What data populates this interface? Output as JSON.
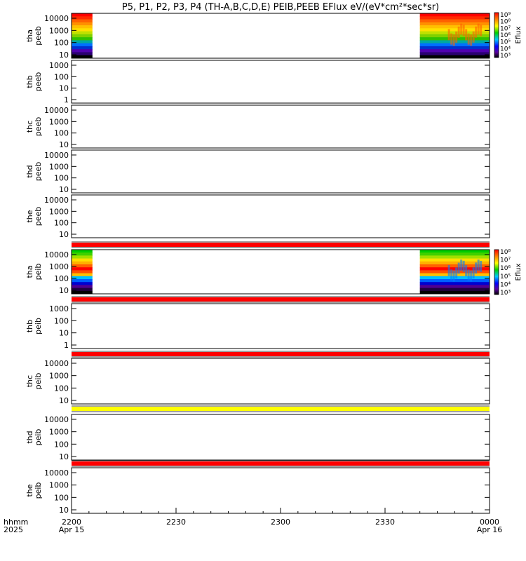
{
  "chart_data": {
    "type": "heatmap",
    "title": "P5, P1, P2, P3, P4 (TH-A,B,C,D,E) PEIB,PEEB EFlux eV/(eV*cm²*sec*sr)",
    "time_axis": {
      "row_label_1": "hhmm",
      "row_label_2": "2025",
      "ticks": [
        {
          "t": 0,
          "label": "2200",
          "date": "Apr 15"
        },
        {
          "t": 30,
          "label": "2230",
          "date": ""
        },
        {
          "t": 60,
          "label": "2300",
          "date": ""
        },
        {
          "t": 90,
          "label": "2330",
          "date": ""
        },
        {
          "t": 120,
          "label": "0000",
          "date": "Apr 16"
        }
      ],
      "range_minutes": [
        0,
        120
      ],
      "start": "2025-04-15 22:00",
      "end": "2025-04-16 00:00"
    },
    "colorbars": [
      {
        "id": "peeb",
        "label": "Eflux",
        "ticks": [
          "10⁹",
          "10⁸",
          "10⁷",
          "10⁶",
          "10⁵",
          "10⁴",
          "10³"
        ]
      },
      {
        "id": "peib",
        "label": "Eflux",
        "ticks": [
          "10⁸",
          "10⁷",
          "10⁶",
          "10⁵",
          "10⁴",
          "10³"
        ]
      }
    ],
    "panels": [
      {
        "probe": "tha",
        "product": "peeb",
        "yticks": [
          "10000",
          "1000",
          "100",
          "10"
        ],
        "data_segments": [
          [
            0,
            6
          ],
          [
            100,
            120
          ]
        ],
        "colorbar": "peeb"
      },
      {
        "probe": "thb",
        "product": "peeb",
        "yticks": [
          "1000",
          "100",
          "10",
          "1"
        ],
        "data_segments": [],
        "colorbar": null
      },
      {
        "probe": "thc",
        "product": "peeb",
        "yticks": [
          "10000",
          "1000",
          "100",
          "10"
        ],
        "data_segments": [],
        "colorbar": null
      },
      {
        "probe": "thd",
        "product": "peeb",
        "yticks": [
          "10000",
          "1000",
          "100",
          "10"
        ],
        "data_segments": [],
        "colorbar": null
      },
      {
        "probe": "the",
        "product": "peeb",
        "yticks": [
          "10000",
          "1000",
          "100",
          "10"
        ],
        "data_segments": [],
        "colorbar": null
      },
      {
        "probe": "tha",
        "product": "peib",
        "yticks": [
          "10000",
          "1000",
          "100",
          "10"
        ],
        "data_segments": [
          [
            0,
            6
          ],
          [
            100,
            120
          ]
        ],
        "colorbar": "peib"
      },
      {
        "probe": "thb",
        "product": "peib",
        "yticks": [
          "1000",
          "100",
          "10",
          "1"
        ],
        "data_segments": [],
        "colorbar": null
      },
      {
        "probe": "thc",
        "product": "peib",
        "yticks": [
          "10000",
          "1000",
          "100",
          "10"
        ],
        "data_segments": [],
        "colorbar": null
      },
      {
        "probe": "thd",
        "product": "peib",
        "yticks": [
          "10000",
          "1000",
          "100",
          "10"
        ],
        "data_segments": [],
        "colorbar": null
      },
      {
        "probe": "the",
        "product": "peib",
        "yticks": [
          "10000",
          "1000",
          "100",
          "10"
        ],
        "data_segments": [],
        "colorbar": null
      }
    ],
    "flag_bars": [
      {
        "after_panel": 4,
        "color": "#ff0000"
      },
      {
        "after_panel": 5,
        "color": "#ff0000"
      },
      {
        "after_panel": 6,
        "color": "#ff0000"
      },
      {
        "after_panel": 7,
        "color": "#ffff00"
      },
      {
        "after_panel": 8,
        "color": "#ff0000"
      }
    ],
    "colors": {
      "background": "#ffffff",
      "axes": "#000000"
    }
  }
}
